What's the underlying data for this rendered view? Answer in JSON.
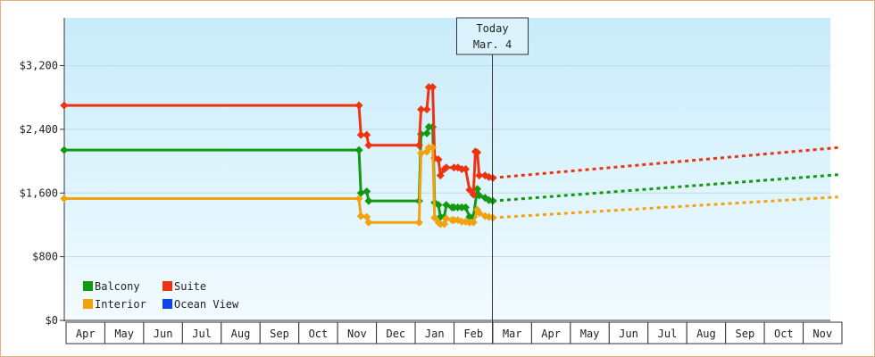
{
  "chart_data": {
    "type": "line",
    "title": "",
    "xlabel": "",
    "ylabel": "",
    "ylim": [
      0,
      3800
    ],
    "yticks": [
      0,
      800,
      1600,
      2400,
      3200
    ],
    "ytick_labels": [
      "$0",
      "$800",
      "$1,600",
      "$2,400",
      "$3,200"
    ],
    "months": [
      "Apr",
      "May",
      "Jun",
      "Jul",
      "Aug",
      "Sep",
      "Oct",
      "Nov",
      "Dec",
      "Jan",
      "Feb",
      "Mar",
      "Apr",
      "May",
      "Jun",
      "Jul",
      "Aug",
      "Sep",
      "Oct",
      "Nov"
    ],
    "today": {
      "line1": "Today",
      "line2": "Mar. 4",
      "month_pos": 10.99
    },
    "grid": true,
    "legend_position": "bottom-left",
    "series": [
      {
        "name": "Balcony",
        "color": "#119911",
        "history": [
          [
            -0.1,
            2140
          ],
          [
            7.55,
            2140
          ],
          [
            7.6,
            1600
          ],
          [
            7.75,
            1620
          ],
          [
            7.8,
            1500
          ],
          [
            9.1,
            1500
          ],
          [
            9.15,
            2340
          ],
          [
            9.3,
            2350
          ],
          [
            9.35,
            2430
          ],
          [
            9.45,
            2430
          ],
          [
            9.5,
            1480
          ],
          [
            9.6,
            1450
          ],
          [
            9.65,
            1300
          ],
          [
            9.75,
            1300
          ],
          [
            9.8,
            1450
          ],
          [
            9.95,
            1420
          ],
          [
            10.0,
            1420
          ],
          [
            10.1,
            1420
          ],
          [
            10.2,
            1420
          ],
          [
            10.3,
            1420
          ],
          [
            10.4,
            1300
          ],
          [
            10.5,
            1300
          ],
          [
            10.6,
            1650
          ],
          [
            10.65,
            1570
          ],
          [
            10.8,
            1540
          ],
          [
            10.9,
            1510
          ],
          [
            11.0,
            1500
          ]
        ],
        "projection": [
          [
            11.0,
            1500
          ],
          [
            19.9,
            1830
          ]
        ]
      },
      {
        "name": "Suite",
        "color": "#ee3311",
        "history": [
          [
            -0.1,
            2700
          ],
          [
            7.55,
            2700
          ],
          [
            7.6,
            2330
          ],
          [
            7.75,
            2330
          ],
          [
            7.8,
            2200
          ],
          [
            9.1,
            2200
          ],
          [
            9.15,
            2650
          ],
          [
            9.3,
            2650
          ],
          [
            9.35,
            2930
          ],
          [
            9.45,
            2930
          ],
          [
            9.5,
            2040
          ],
          [
            9.6,
            2020
          ],
          [
            9.65,
            1820
          ],
          [
            9.75,
            1900
          ],
          [
            9.8,
            1920
          ],
          [
            10.0,
            1920
          ],
          [
            10.1,
            1920
          ],
          [
            10.2,
            1900
          ],
          [
            10.3,
            1900
          ],
          [
            10.4,
            1640
          ],
          [
            10.5,
            1580
          ],
          [
            10.55,
            2120
          ],
          [
            10.6,
            2110
          ],
          [
            10.65,
            1820
          ],
          [
            10.8,
            1820
          ],
          [
            10.9,
            1800
          ],
          [
            11.0,
            1790
          ]
        ],
        "projection": [
          [
            11.0,
            1790
          ],
          [
            19.9,
            2170
          ]
        ]
      },
      {
        "name": "Interior",
        "color": "#f2a20e",
        "history": [
          [
            -0.1,
            1530
          ],
          [
            7.55,
            1530
          ],
          [
            7.6,
            1310
          ],
          [
            7.75,
            1300
          ],
          [
            7.8,
            1230
          ],
          [
            9.1,
            1230
          ],
          [
            9.15,
            2100
          ],
          [
            9.3,
            2120
          ],
          [
            9.35,
            2170
          ],
          [
            9.45,
            2170
          ],
          [
            9.5,
            1290
          ],
          [
            9.6,
            1230
          ],
          [
            9.65,
            1210
          ],
          [
            9.75,
            1210
          ],
          [
            9.8,
            1280
          ],
          [
            9.95,
            1260
          ],
          [
            10.0,
            1260
          ],
          [
            10.1,
            1260
          ],
          [
            10.2,
            1240
          ],
          [
            10.3,
            1240
          ],
          [
            10.4,
            1230
          ],
          [
            10.5,
            1230
          ],
          [
            10.6,
            1390
          ],
          [
            10.65,
            1350
          ],
          [
            10.8,
            1310
          ],
          [
            10.9,
            1300
          ],
          [
            11.0,
            1290
          ]
        ],
        "projection": [
          [
            11.0,
            1290
          ],
          [
            19.9,
            1550
          ]
        ]
      },
      {
        "name": "Ocean View",
        "color": "#1144ee",
        "history": [],
        "projection": []
      }
    ]
  }
}
